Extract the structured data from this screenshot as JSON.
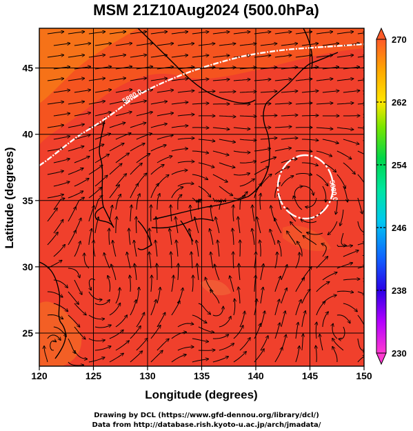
{
  "title": "MSM 21Z10Aug2024 (500.0hPa)",
  "map": {
    "xlabel": "Longitude (degrees)",
    "ylabel": "Latitude  (degrees)",
    "xlim": [
      120,
      150
    ],
    "ylim": [
      22.5,
      48
    ],
    "x_ticks": [
      "120",
      "125",
      "130",
      "135",
      "140",
      "145",
      "150"
    ],
    "y_ticks": [
      "25",
      "30",
      "35",
      "40",
      "45"
    ],
    "grid": true,
    "field": "temperature (shaded), streamlines",
    "contour_labels": [
      "5880.0",
      "5880.0"
    ]
  },
  "colorbar": {
    "ticks": [
      "270",
      "262",
      "254",
      "246",
      "238",
      "230"
    ],
    "range": [
      230,
      270
    ],
    "colors": [
      "#ff3ad0",
      "#b400ff",
      "#2a00e6",
      "#1060ff",
      "#00c8f0",
      "#00e6a0",
      "#00d64a",
      "#78e600",
      "#ffe600",
      "#ffa800",
      "#ff5a28"
    ]
  },
  "credits": {
    "line1": "Drawing by DCL (https://www.gfd-dennou.org/library/dcl/)",
    "line2": "Data from http://database.rish.kyoto-u.ac.jp/arch/jmadata/"
  }
}
